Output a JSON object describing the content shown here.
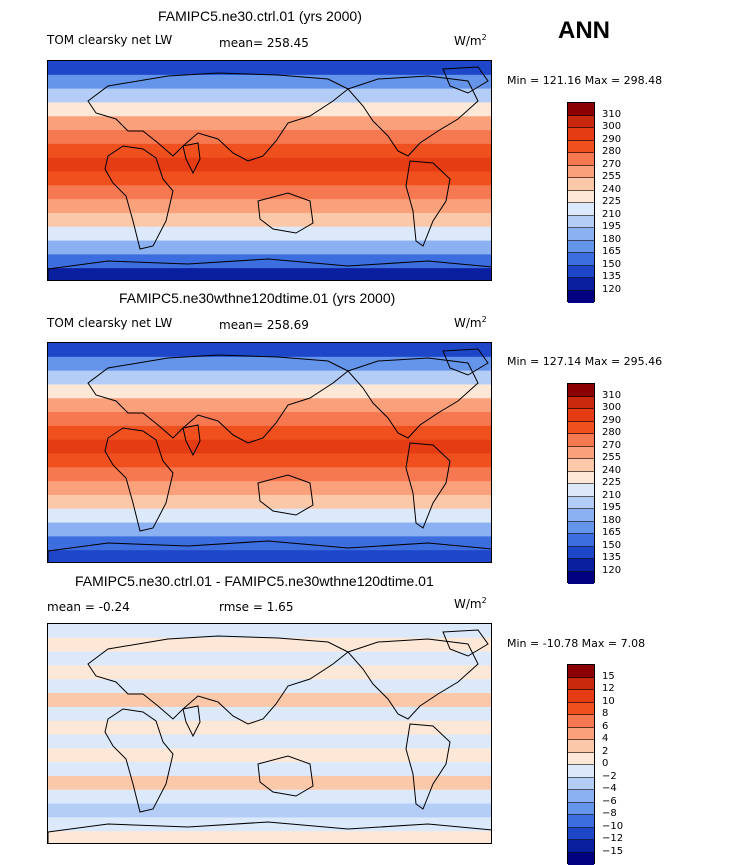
{
  "season": "ANN",
  "panels": [
    {
      "title": "FAMIPC5.ne30.ctrl.01 (yrs 2000)",
      "left_label": "TOM clearsky net LW",
      "mean_text": "mean= 258.45",
      "units_base": "W/m",
      "units_exp": "2",
      "minmax": "Min = 121.16 Max = 298.48",
      "levels": [
        "310",
        "300",
        "290",
        "280",
        "270",
        "255",
        "240",
        "225",
        "210",
        "195",
        "180",
        "165",
        "150",
        "135",
        "120"
      ],
      "colors": [
        "#8b0000",
        "#c8280c",
        "#e63c14",
        "#f0501e",
        "#f57850",
        "#faa07a",
        "#fcc8aa",
        "#fde8d8",
        "#dce9fb",
        "#b4cdf7",
        "#8cb1f2",
        "#6495eb",
        "#3c6ee0",
        "#1e46c8",
        "#0a1ea0",
        "#000080"
      ]
    },
    {
      "title": "FAMIPC5.ne30wthne120dtime.01 (yrs 2000)",
      "left_label": "TOM clearsky net LW",
      "mean_text": "mean= 258.69",
      "units_base": "W/m",
      "units_exp": "2",
      "minmax": "Min = 127.14 Max = 295.46",
      "levels": [
        "310",
        "300",
        "290",
        "280",
        "270",
        "255",
        "240",
        "225",
        "210",
        "195",
        "180",
        "165",
        "150",
        "135",
        "120"
      ],
      "colors": [
        "#8b0000",
        "#c8280c",
        "#e63c14",
        "#f0501e",
        "#f57850",
        "#faa07a",
        "#fcc8aa",
        "#fde8d8",
        "#dce9fb",
        "#b4cdf7",
        "#8cb1f2",
        "#6495eb",
        "#3c6ee0",
        "#1e46c8",
        "#0a1ea0",
        "#000080"
      ]
    },
    {
      "title": "FAMIPC5.ne30.ctrl.01 - FAMIPC5.ne30wthne120dtime.01",
      "left_label": "mean =  -0.24",
      "mean_text": "rmse =   1.65",
      "units_base": "W/m",
      "units_exp": "2",
      "minmax": "Min = -10.78 Max =   7.08",
      "levels": [
        "15",
        "12",
        "10",
        "8",
        "6",
        "4",
        "2",
        "0",
        "−2",
        "−4",
        "−6",
        "−8",
        "−10",
        "−12",
        "−15"
      ],
      "colors": [
        "#8b0000",
        "#c8280c",
        "#e63c14",
        "#f0501e",
        "#f57850",
        "#faa07a",
        "#fcc8aa",
        "#fde8d8",
        "#dce9fb",
        "#b4cdf7",
        "#8cb1f2",
        "#6495eb",
        "#3c6ee0",
        "#1e46c8",
        "#0a1ea0",
        "#000080"
      ]
    }
  ]
}
